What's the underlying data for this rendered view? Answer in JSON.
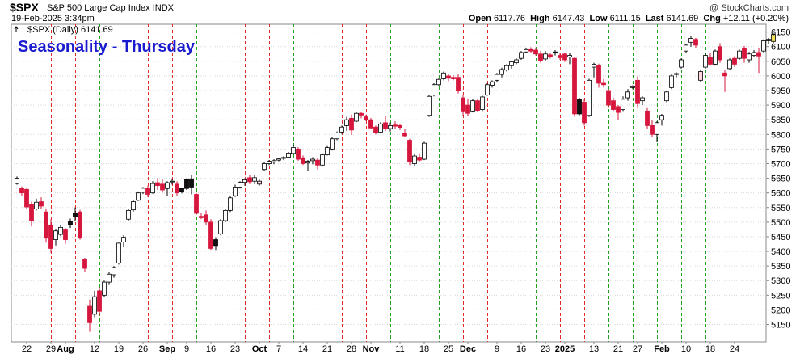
{
  "header": {
    "symbol": "$SPX",
    "full_name": "S&P 500 Large Cap Index",
    "exchange": "INDX",
    "date": "19-Feb-2025 3:34pm",
    "copyright": "@ StockCharts.com",
    "open_label": "Open",
    "open": "6117.76",
    "high_label": "High",
    "high": "6147.43",
    "low_label": "Low",
    "low": "6111.15",
    "last_label": "Last",
    "last": "6141.69",
    "chg_label": "Chg",
    "chg": "+12.11 (+0.20%)"
  },
  "colors": {
    "up": "#ffffff",
    "down": "#d6163c",
    "up_outline": "#000000",
    "thursday_up_line": "#1fa31f",
    "thursday_down_line": "#e32626",
    "title": "#1a1acf"
  },
  "chart_data": {
    "type": "candlestick",
    "title": "Seasonality - Thursday",
    "legend": "$SPX (Daily) 6141.69",
    "ylim": [
      5110,
      6160
    ],
    "y_ticks": [
      5150,
      5200,
      5250,
      5300,
      5350,
      5400,
      5450,
      5500,
      5550,
      5600,
      5650,
      5700,
      5750,
      5800,
      5850,
      5900,
      5950,
      6000,
      6050,
      6100,
      6150
    ],
    "x_ticks": [
      {
        "label": "22",
        "i": 2
      },
      {
        "label": "29",
        "i": 7
      },
      {
        "label": "Aug",
        "i": 10,
        "month": true
      },
      {
        "label": "12",
        "i": 16
      },
      {
        "label": "19",
        "i": 21
      },
      {
        "label": "26",
        "i": 26
      },
      {
        "label": "Sep",
        "i": 31,
        "month": true
      },
      {
        "label": "9",
        "i": 35
      },
      {
        "label": "16",
        "i": 40
      },
      {
        "label": "23",
        "i": 45
      },
      {
        "label": "Oct",
        "i": 50,
        "month": true
      },
      {
        "label": "7",
        "i": 54
      },
      {
        "label": "14",
        "i": 59
      },
      {
        "label": "21",
        "i": 64
      },
      {
        "label": "28",
        "i": 69
      },
      {
        "label": "Nov",
        "i": 73,
        "month": true
      },
      {
        "label": "11",
        "i": 79
      },
      {
        "label": "18",
        "i": 84
      },
      {
        "label": "25",
        "i": 89
      },
      {
        "label": "Dec",
        "i": 93,
        "month": true
      },
      {
        "label": "9",
        "i": 99
      },
      {
        "label": "16",
        "i": 104
      },
      {
        "label": "23",
        "i": 109
      },
      {
        "label": "2025",
        "i": 113,
        "month": true
      },
      {
        "label": "13",
        "i": 119
      },
      {
        "label": "21",
        "i": 124
      },
      {
        "label": "27",
        "i": 128
      },
      {
        "label": "Feb",
        "i": 133,
        "month": true
      },
      {
        "label": "10",
        "i": 138
      },
      {
        "label": "18",
        "i": 143
      },
      {
        "label": "24",
        "i": 148
      }
    ],
    "thursdays": [
      {
        "i": 2,
        "dir": "down"
      },
      {
        "i": 7,
        "dir": "down"
      },
      {
        "i": 12,
        "dir": "down"
      },
      {
        "i": 17,
        "dir": "up"
      },
      {
        "i": 22,
        "dir": "up"
      },
      {
        "i": 27,
        "dir": "down"
      },
      {
        "i": 32,
        "dir": "down"
      },
      {
        "i": 37,
        "dir": "up"
      },
      {
        "i": 42,
        "dir": "up"
      },
      {
        "i": 47,
        "dir": "down"
      },
      {
        "i": 52,
        "dir": "down"
      },
      {
        "i": 57,
        "dir": "up"
      },
      {
        "i": 62,
        "dir": "down"
      },
      {
        "i": 67,
        "dir": "down"
      },
      {
        "i": 72,
        "dir": "down"
      },
      {
        "i": 77,
        "dir": "up"
      },
      {
        "i": 82,
        "dir": "up"
      },
      {
        "i": 87,
        "dir": "up"
      },
      {
        "i": 92,
        "dir": "down"
      },
      {
        "i": 97,
        "dir": "down"
      },
      {
        "i": 102,
        "dir": "down"
      },
      {
        "i": 107,
        "dir": "up"
      },
      {
        "i": 112,
        "dir": "down"
      },
      {
        "i": 117,
        "dir": "down"
      },
      {
        "i": 122,
        "dir": "up"
      },
      {
        "i": 127,
        "dir": "up"
      },
      {
        "i": 132,
        "dir": "up"
      },
      {
        "i": 137,
        "dir": "up"
      },
      {
        "i": 142,
        "dir": "up"
      }
    ],
    "candles": [
      {
        "o": 5632,
        "h": 5656,
        "l": 5628,
        "c": 5650
      },
      {
        "o": 5615,
        "h": 5622,
        "l": 5590,
        "c": 5600
      },
      {
        "o": 5612,
        "h": 5618,
        "l": 5545,
        "c": 5552
      },
      {
        "o": 5560,
        "h": 5570,
        "l": 5485,
        "c": 5505
      },
      {
        "o": 5545,
        "h": 5580,
        "l": 5540,
        "c": 5568
      },
      {
        "o": 5570,
        "h": 5585,
        "l": 5545,
        "c": 5555
      },
      {
        "o": 5535,
        "h": 5545,
        "l": 5430,
        "c": 5445
      },
      {
        "o": 5490,
        "h": 5510,
        "l": 5395,
        "c": 5410
      },
      {
        "o": 5440,
        "h": 5478,
        "l": 5420,
        "c": 5470
      },
      {
        "o": 5458,
        "h": 5490,
        "l": 5452,
        "c": 5482
      },
      {
        "o": 5476,
        "h": 5480,
        "l": 5426,
        "c": 5440
      },
      {
        "o": 5502,
        "h": 5512,
        "l": 5480,
        "c": 5492
      },
      {
        "o": 5530,
        "h": 5550,
        "l": 5505,
        "c": 5518
      },
      {
        "o": 5535,
        "h": 5542,
        "l": 5440,
        "c": 5445
      },
      {
        "o": 5372,
        "h": 5378,
        "l": 5330,
        "c": 5342
      },
      {
        "o": 5215,
        "h": 5235,
        "l": 5125,
        "c": 5156
      },
      {
        "o": 5185,
        "h": 5265,
        "l": 5175,
        "c": 5245
      },
      {
        "o": 5265,
        "h": 5278,
        "l": 5180,
        "c": 5195
      },
      {
        "o": 5250,
        "h": 5300,
        "l": 5245,
        "c": 5295
      },
      {
        "o": 5295,
        "h": 5330,
        "l": 5285,
        "c": 5322
      },
      {
        "o": 5320,
        "h": 5350,
        "l": 5310,
        "c": 5345
      },
      {
        "o": 5360,
        "h": 5430,
        "l": 5355,
        "c": 5428
      },
      {
        "o": 5432,
        "h": 5455,
        "l": 5415,
        "c": 5448
      },
      {
        "o": 5510,
        "h": 5545,
        "l": 5505,
        "c": 5540
      },
      {
        "o": 5542,
        "h": 5575,
        "l": 5536,
        "c": 5570
      },
      {
        "o": 5575,
        "h": 5605,
        "l": 5572,
        "c": 5600
      },
      {
        "o": 5602,
        "h": 5620,
        "l": 5596,
        "c": 5616
      },
      {
        "o": 5615,
        "h": 5625,
        "l": 5585,
        "c": 5595
      },
      {
        "o": 5600,
        "h": 5640,
        "l": 5597,
        "c": 5632
      },
      {
        "o": 5635,
        "h": 5650,
        "l": 5610,
        "c": 5625
      },
      {
        "o": 5630,
        "h": 5648,
        "l": 5600,
        "c": 5610
      },
      {
        "o": 5615,
        "h": 5640,
        "l": 5590,
        "c": 5635
      },
      {
        "o": 5638,
        "h": 5648,
        "l": 5628,
        "c": 5640
      },
      {
        "o": 5630,
        "h": 5640,
        "l": 5590,
        "c": 5600
      },
      {
        "o": 5615,
        "h": 5618,
        "l": 5598,
        "c": 5605
      },
      {
        "o": 5645,
        "h": 5650,
        "l": 5610,
        "c": 5615
      },
      {
        "o": 5648,
        "h": 5660,
        "l": 5595,
        "c": 5620
      },
      {
        "o": 5595,
        "h": 5600,
        "l": 5525,
        "c": 5530
      },
      {
        "o": 5520,
        "h": 5530,
        "l": 5510,
        "c": 5515
      },
      {
        "o": 5525,
        "h": 5540,
        "l": 5490,
        "c": 5500
      },
      {
        "o": 5500,
        "h": 5510,
        "l": 5405,
        "c": 5410
      },
      {
        "o": 5440,
        "h": 5448,
        "l": 5405,
        "c": 5420
      },
      {
        "o": 5460,
        "h": 5510,
        "l": 5455,
        "c": 5505
      },
      {
        "o": 5505,
        "h": 5545,
        "l": 5500,
        "c": 5540
      },
      {
        "o": 5540,
        "h": 5590,
        "l": 5535,
        "c": 5583
      },
      {
        "o": 5590,
        "h": 5628,
        "l": 5586,
        "c": 5620
      },
      {
        "o": 5620,
        "h": 5640,
        "l": 5615,
        "c": 5636
      },
      {
        "o": 5636,
        "h": 5650,
        "l": 5625,
        "c": 5645
      },
      {
        "o": 5652,
        "h": 5660,
        "l": 5630,
        "c": 5638
      },
      {
        "o": 5640,
        "h": 5660,
        "l": 5630,
        "c": 5652
      },
      {
        "o": 5630,
        "h": 5645,
        "l": 5625,
        "c": 5640
      },
      {
        "o": 5680,
        "h": 5705,
        "l": 5675,
        "c": 5700
      },
      {
        "o": 5700,
        "h": 5712,
        "l": 5695,
        "c": 5708
      },
      {
        "o": 5705,
        "h": 5715,
        "l": 5698,
        "c": 5710
      },
      {
        "o": 5712,
        "h": 5720,
        "l": 5708,
        "c": 5716
      },
      {
        "o": 5718,
        "h": 5725,
        "l": 5712,
        "c": 5721
      },
      {
        "o": 5722,
        "h": 5740,
        "l": 5718,
        "c": 5736
      },
      {
        "o": 5735,
        "h": 5762,
        "l": 5730,
        "c": 5755
      },
      {
        "o": 5750,
        "h": 5756,
        "l": 5710,
        "c": 5715
      },
      {
        "o": 5720,
        "h": 5728,
        "l": 5695,
        "c": 5700
      },
      {
        "o": 5702,
        "h": 5712,
        "l": 5675,
        "c": 5708
      },
      {
        "o": 5710,
        "h": 5722,
        "l": 5698,
        "c": 5715
      },
      {
        "o": 5712,
        "h": 5718,
        "l": 5680,
        "c": 5695
      },
      {
        "o": 5695,
        "h": 5735,
        "l": 5690,
        "c": 5730
      },
      {
        "o": 5730,
        "h": 5760,
        "l": 5728,
        "c": 5755
      },
      {
        "o": 5750,
        "h": 5790,
        "l": 5745,
        "c": 5785
      },
      {
        "o": 5785,
        "h": 5810,
        "l": 5780,
        "c": 5805
      },
      {
        "o": 5808,
        "h": 5830,
        "l": 5802,
        "c": 5825
      },
      {
        "o": 5830,
        "h": 5860,
        "l": 5812,
        "c": 5850
      },
      {
        "o": 5855,
        "h": 5868,
        "l": 5798,
        "c": 5815
      },
      {
        "o": 5845,
        "h": 5878,
        "l": 5842,
        "c": 5872
      },
      {
        "o": 5872,
        "h": 5878,
        "l": 5855,
        "c": 5866
      },
      {
        "o": 5860,
        "h": 5868,
        "l": 5845,
        "c": 5850
      },
      {
        "o": 5850,
        "h": 5856,
        "l": 5818,
        "c": 5822
      },
      {
        "o": 5825,
        "h": 5830,
        "l": 5800,
        "c": 5806
      },
      {
        "o": 5808,
        "h": 5842,
        "l": 5804,
        "c": 5836
      },
      {
        "o": 5840,
        "h": 5862,
        "l": 5812,
        "c": 5820
      },
      {
        "o": 5820,
        "h": 5840,
        "l": 5810,
        "c": 5830
      },
      {
        "o": 5832,
        "h": 5845,
        "l": 5820,
        "c": 5828
      },
      {
        "o": 5830,
        "h": 5835,
        "l": 5815,
        "c": 5824
      },
      {
        "o": 5805,
        "h": 5818,
        "l": 5790,
        "c": 5795
      },
      {
        "o": 5780,
        "h": 5785,
        "l": 5695,
        "c": 5705
      },
      {
        "o": 5700,
        "h": 5735,
        "l": 5692,
        "c": 5726
      },
      {
        "o": 5722,
        "h": 5732,
        "l": 5705,
        "c": 5712
      },
      {
        "o": 5715,
        "h": 5775,
        "l": 5712,
        "c": 5770
      },
      {
        "o": 5865,
        "h": 5935,
        "l": 5860,
        "c": 5930
      },
      {
        "o": 5935,
        "h": 5975,
        "l": 5930,
        "c": 5970
      },
      {
        "o": 5970,
        "h": 5992,
        "l": 5965,
        "c": 5988
      },
      {
        "o": 5990,
        "h": 6015,
        "l": 5985,
        "c": 6010
      },
      {
        "o": 6000,
        "h": 6008,
        "l": 5982,
        "c": 5992
      },
      {
        "o": 5995,
        "h": 6002,
        "l": 5985,
        "c": 5990
      },
      {
        "o": 5995,
        "h": 6005,
        "l": 5940,
        "c": 5950
      },
      {
        "o": 5925,
        "h": 5935,
        "l": 5862,
        "c": 5880
      },
      {
        "o": 5900,
        "h": 5920,
        "l": 5862,
        "c": 5872
      },
      {
        "o": 5880,
        "h": 5920,
        "l": 5875,
        "c": 5915
      },
      {
        "o": 5915,
        "h": 5920,
        "l": 5878,
        "c": 5882
      },
      {
        "o": 5885,
        "h": 5932,
        "l": 5880,
        "c": 5928
      },
      {
        "o": 5935,
        "h": 5975,
        "l": 5932,
        "c": 5970
      },
      {
        "o": 5968,
        "h": 5985,
        "l": 5960,
        "c": 5980
      },
      {
        "o": 5985,
        "h": 6010,
        "l": 5980,
        "c": 6005
      },
      {
        "o": 6005,
        "h": 6028,
        "l": 5995,
        "c": 6022
      },
      {
        "o": 6020,
        "h": 6040,
        "l": 6015,
        "c": 6035
      },
      {
        "o": 6035,
        "h": 6050,
        "l": 6025,
        "c": 6048
      },
      {
        "o": 6045,
        "h": 6060,
        "l": 6040,
        "c": 6055
      },
      {
        "o": 6060,
        "h": 6085,
        "l": 6055,
        "c": 6080
      },
      {
        "o": 6082,
        "h": 6095,
        "l": 6078,
        "c": 6090
      },
      {
        "o": 6090,
        "h": 6098,
        "l": 6080,
        "c": 6085
      },
      {
        "o": 6088,
        "h": 6095,
        "l": 6070,
        "c": 6075
      },
      {
        "o": 6075,
        "h": 6085,
        "l": 6045,
        "c": 6052
      },
      {
        "o": 6058,
        "h": 6085,
        "l": 6052,
        "c": 6075
      },
      {
        "o": 6072,
        "h": 6080,
        "l": 6060,
        "c": 6066
      },
      {
        "o": 6082,
        "h": 6088,
        "l": 6070,
        "c": 6078
      },
      {
        "o": 6070,
        "h": 6078,
        "l": 6055,
        "c": 6062
      },
      {
        "o": 6075,
        "h": 6080,
        "l": 6048,
        "c": 6055
      },
      {
        "o": 6065,
        "h": 6080,
        "l": 6040,
        "c": 6070
      },
      {
        "o": 6060,
        "h": 6065,
        "l": 5860,
        "c": 5870
      },
      {
        "o": 5920,
        "h": 5925,
        "l": 5865,
        "c": 5870
      },
      {
        "o": 5910,
        "h": 5920,
        "l": 5830,
        "c": 5840
      },
      {
        "o": 5865,
        "h": 5990,
        "l": 5860,
        "c": 5985
      },
      {
        "o": 6030,
        "h": 6045,
        "l": 5995,
        "c": 6040
      },
      {
        "o": 6035,
        "h": 6042,
        "l": 5960,
        "c": 5975
      },
      {
        "o": 5975,
        "h": 5990,
        "l": 5960,
        "c": 5970
      },
      {
        "o": 5950,
        "h": 5955,
        "l": 5890,
        "c": 5900
      },
      {
        "o": 5915,
        "h": 5925,
        "l": 5880,
        "c": 5885
      },
      {
        "o": 5895,
        "h": 5900,
        "l": 5850,
        "c": 5875
      },
      {
        "o": 5885,
        "h": 5930,
        "l": 5880,
        "c": 5920
      },
      {
        "o": 5925,
        "h": 5955,
        "l": 5915,
        "c": 5945
      },
      {
        "o": 5960,
        "h": 5968,
        "l": 5955,
        "c": 5963
      },
      {
        "o": 5985,
        "h": 5998,
        "l": 5890,
        "c": 5905
      },
      {
        "o": 5915,
        "h": 5930,
        "l": 5900,
        "c": 5925
      },
      {
        "o": 5880,
        "h": 5890,
        "l": 5820,
        "c": 5830
      },
      {
        "o": 5830,
        "h": 5850,
        "l": 5790,
        "c": 5800
      },
      {
        "o": 5800,
        "h": 5845,
        "l": 5773,
        "c": 5840
      },
      {
        "o": 5850,
        "h": 5870,
        "l": 5830,
        "c": 5865
      },
      {
        "o": 5915,
        "h": 5950,
        "l": 5910,
        "c": 5945
      },
      {
        "o": 5960,
        "h": 6005,
        "l": 5955,
        "c": 6000
      },
      {
        "o": 6005,
        "h": 6012,
        "l": 5995,
        "c": 6008
      },
      {
        "o": 6030,
        "h": 6060,
        "l": 6025,
        "c": 6055
      },
      {
        "o": 6085,
        "h": 6110,
        "l": 6080,
        "c": 6105
      },
      {
        "o": 6115,
        "h": 6135,
        "l": 6100,
        "c": 6128
      },
      {
        "o": 6125,
        "h": 6130,
        "l": 6095,
        "c": 6105
      },
      {
        "o": 5985,
        "h": 6020,
        "l": 5980,
        "c": 6015
      },
      {
        "o": 6030,
        "h": 6080,
        "l": 6025,
        "c": 6070
      },
      {
        "o": 6065,
        "h": 6078,
        "l": 6035,
        "c": 6040
      },
      {
        "o": 6040,
        "h": 6090,
        "l": 6035,
        "c": 6085
      },
      {
        "o": 6100,
        "h": 6112,
        "l": 6045,
        "c": 6055
      },
      {
        "o": 6010,
        "h": 6022,
        "l": 5945,
        "c": 6000
      },
      {
        "o": 6025,
        "h": 6060,
        "l": 6020,
        "c": 6055
      },
      {
        "o": 6060,
        "h": 6068,
        "l": 6030,
        "c": 6040
      },
      {
        "o": 6060,
        "h": 6090,
        "l": 6055,
        "c": 6085
      },
      {
        "o": 6095,
        "h": 6102,
        "l": 6045,
        "c": 6060
      },
      {
        "o": 6055,
        "h": 6082,
        "l": 6045,
        "c": 6075
      },
      {
        "o": 6070,
        "h": 6088,
        "l": 6065,
        "c": 6080
      },
      {
        "o": 6080,
        "h": 6095,
        "l": 6010,
        "c": 6068
      },
      {
        "o": 6085,
        "h": 6125,
        "l": 6080,
        "c": 6120
      },
      {
        "o": 6120,
        "h": 6130,
        "l": 6110,
        "c": 6125
      },
      {
        "o": 6117.76,
        "h": 6147.43,
        "l": 6111.15,
        "c": 6141.69,
        "current": true
      }
    ]
  }
}
